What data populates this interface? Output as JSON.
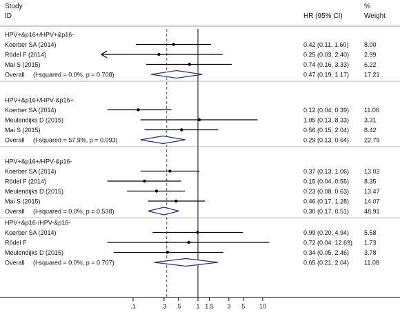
{
  "header": {
    "study_label": "Study",
    "id_label": "ID",
    "hr_label": "HR (95% CI)",
    "pct_label": "%",
    "weight_label": "Weight"
  },
  "chart_data": {
    "type": "forest",
    "xscale": "log",
    "xlim": [
      0.06,
      25
    ],
    "xticks": [
      ".1",
      ".3",
      ".5",
      "1",
      "1.5",
      "3",
      "5",
      "10"
    ],
    "xtick_values": [
      0.1,
      0.3,
      0.5,
      1,
      1.5,
      3,
      5,
      10
    ],
    "null_line": 1,
    "pooled_line": 0.33,
    "groups": [
      {
        "title": "HPV+&p16+/HPV+&p16-",
        "studies": [
          {
            "id": "Koerber SA (2014)",
            "hr": 0.42,
            "lo": 0.11,
            "hi": 1.6,
            "ci": "0.42 (0.11, 1.60)",
            "weight": "8.00"
          },
          {
            "id": "Rödel F (2014)",
            "hr": 0.25,
            "lo": 0.03,
            "hi": 2.4,
            "ci": "0.25 (0.03, 2.40)",
            "weight": "2.99"
          },
          {
            "id": "Mai S (2015)",
            "hr": 0.74,
            "lo": 0.16,
            "hi": 3.33,
            "ci": "0.74 (0.16, 3.33)",
            "weight": "6.22"
          }
        ],
        "overall": {
          "label": "Overall",
          "stat": "(I-squared = 0.0%, p = 0.708)",
          "hr": 0.47,
          "lo": 0.19,
          "hi": 1.17,
          "ci": "0.47 (0.19, 1.17)",
          "weight": "17.21"
        }
      },
      {
        "title": "HPV+&p16+/HPV-&p16+",
        "studies": [
          {
            "id": "Koerber SA (2014)",
            "hr": 0.12,
            "lo": 0.04,
            "hi": 0.39,
            "ci": "0.12 (0.04, 0.39)",
            "weight": "11.06"
          },
          {
            "id": "Meulendijks D (2015)",
            "hr": 1.05,
            "lo": 0.13,
            "hi": 8.33,
            "ci": "1.05 (0.13, 8.33)",
            "weight": "3.31"
          },
          {
            "id": "Mai S (2015)",
            "hr": 0.56,
            "lo": 0.15,
            "hi": 2.04,
            "ci": "0.56 (0.15, 2.04)",
            "weight": "8.42"
          }
        ],
        "overall": {
          "label": "Overall",
          "stat": "(I-squared = 57.9%, p = 0.093)",
          "hr": 0.29,
          "lo": 0.13,
          "hi": 0.64,
          "ci": "0.29 (0.13, 0.64)",
          "weight": "22.79"
        }
      },
      {
        "title": "HPV+&p16+/HPV-&p16-",
        "studies": [
          {
            "id": "Koerber SA (2014)",
            "hr": 0.37,
            "lo": 0.13,
            "hi": 1.06,
            "ci": "0.37 (0.13, 1.06)",
            "weight": "13.02"
          },
          {
            "id": "Rödel F (2014)",
            "hr": 0.15,
            "lo": 0.04,
            "hi": 0.55,
            "ci": "0.15 (0.04, 0.55)",
            "weight": "8.35"
          },
          {
            "id": "Meulendijks D (2015)",
            "hr": 0.23,
            "lo": 0.08,
            "hi": 0.63,
            "ci": "0.23 (0.08, 0.63)",
            "weight": "13.47"
          },
          {
            "id": "Mai S (2015)",
            "hr": 0.46,
            "lo": 0.17,
            "hi": 1.28,
            "ci": "0.46 (0.17, 1.28)",
            "weight": "14.07"
          }
        ],
        "overall": {
          "label": "Overall",
          "stat": "(I-squared = 0.0%, p = 0.538)",
          "hr": 0.3,
          "lo": 0.17,
          "hi": 0.51,
          "ci": "0.30 (0.17, 0.51)",
          "weight": "48.91"
        }
      },
      {
        "title": "HPV+&p16-/HPV-&p16-",
        "studies": [
          {
            "id": "Koerber SA (2014)",
            "hr": 0.99,
            "lo": 0.2,
            "hi": 4.94,
            "ci": "0.99 (0.20, 4.94)",
            "weight": "5.58"
          },
          {
            "id": "Rödel F",
            "hr": 0.72,
            "lo": 0.04,
            "hi": 12.69,
            "ci": "0.72 (0.04, 12.69)",
            "weight": "1.73"
          },
          {
            "id": "Meulendijks D (2015)",
            "hr": 0.34,
            "lo": 0.05,
            "hi": 2.46,
            "ci": "0.34 (0.05, 2.46)",
            "weight": "3.78"
          }
        ],
        "overall": {
          "label": "Overall",
          "stat": "(I-squared = 0.0%, p = 0.707)",
          "hr": 0.65,
          "lo": 0.21,
          "hi": 2.04,
          "ci": "0.65 (0.21, 2.04)",
          "weight": "11.08"
        }
      }
    ],
    "colors": {
      "diamond": "#1f2f8f",
      "pooled_line": "#b02a2a",
      "line": "#000000",
      "rule": "#9a9a9a"
    }
  }
}
